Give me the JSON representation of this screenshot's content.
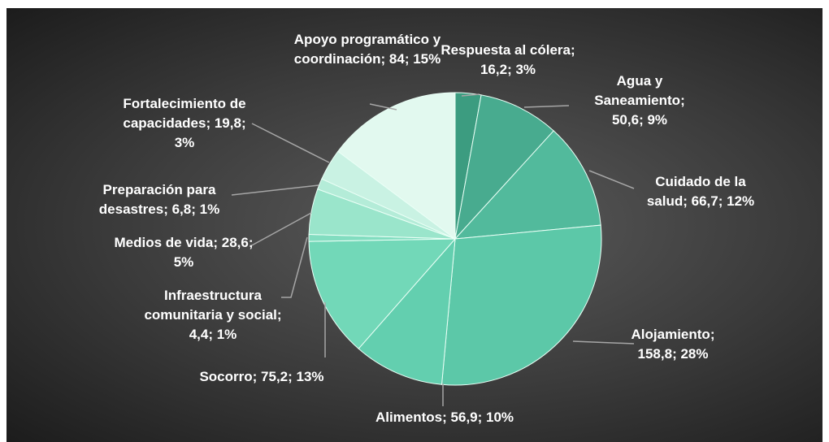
{
  "chart_data": {
    "type": "pie",
    "categories": [
      "Respuesta al cólera",
      "Agua y Saneamiento",
      "Cuidado de la salud",
      "Alojamiento",
      "Alimentos",
      "Socorro",
      "Infraestructura comunitaria y social",
      "Medios de vida",
      "Preparación para desastres",
      "Fortalecimiento de capacidades",
      "Apoyo programático y coordinación"
    ],
    "values": [
      16.2,
      50.6,
      66.7,
      158.8,
      56.9,
      75.2,
      4.4,
      28.6,
      6.8,
      19.8,
      84
    ],
    "value_labels": [
      "16,2",
      "50,6",
      "66,7",
      "158,8",
      "56,9",
      "75,2",
      "4,4",
      "28,6",
      "6,8",
      "19,8",
      "84"
    ],
    "percents": [
      3,
      9,
      12,
      28,
      10,
      13,
      1,
      5,
      1,
      3,
      15
    ],
    "percent_labels": [
      "3%",
      "9%",
      "12%",
      "28%",
      "10%",
      "13%",
      "1%",
      "5%",
      "1%",
      "3%",
      "15%"
    ],
    "separator": "; ",
    "colors": [
      "#3c9c80",
      "#48ab8f",
      "#52ba9c",
      "#5cc8a8",
      "#63cfaf",
      "#72d8b8",
      "#82ddc0",
      "#9ae5cb",
      "#b4ecd8",
      "#c9f2e3",
      "#e2f9ef"
    ]
  }
}
